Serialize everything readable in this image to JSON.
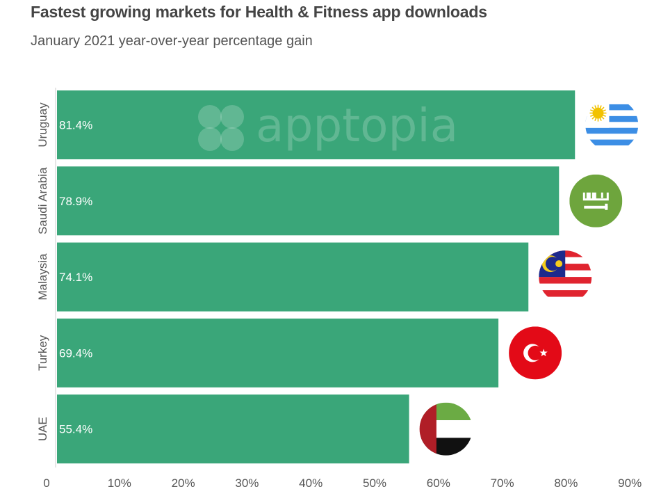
{
  "header": {
    "title": "Fastest growing markets for Health & Fitness app downloads",
    "subtitle": "January 2021 year-over-year percentage gain"
  },
  "watermark": {
    "text": "apptopia"
  },
  "chart_data": {
    "type": "bar",
    "orientation": "horizontal",
    "categories": [
      "Uruguay",
      "Saudi Arabia",
      "Malaysia",
      "Turkey",
      "UAE"
    ],
    "values": [
      81.4,
      78.9,
      74.1,
      69.4,
      55.4
    ],
    "value_labels": [
      "81.4%",
      "78.9%",
      "74.1%",
      "69.4%",
      "55.4%"
    ],
    "x_ticks": [
      "0",
      "10%",
      "20%",
      "30%",
      "40%",
      "50%",
      "60%",
      "70%",
      "80%",
      "90%"
    ],
    "x_tick_values": [
      0,
      10,
      20,
      30,
      40,
      50,
      60,
      70,
      80,
      90
    ],
    "xlim": [
      0,
      95
    ],
    "grid": false,
    "bar_color": "#3aa679",
    "flags": [
      "uruguay-flag",
      "saudi-arabia-flag",
      "malaysia-flag",
      "turkey-flag",
      "uae-flag"
    ]
  }
}
